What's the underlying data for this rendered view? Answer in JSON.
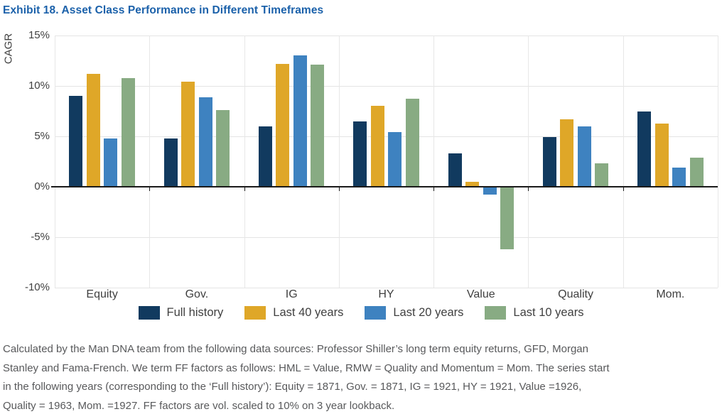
{
  "title": "Exhibit 18. Asset Class Performance in Different Timeframes",
  "chart_data": {
    "type": "bar",
    "title": "Exhibit 18. Asset Class Performance in Different Timeframes",
    "ylabel": "CAGR",
    "xlabel": "",
    "ylim": [
      -10,
      15
    ],
    "grid": true,
    "legend_position": "bottom",
    "yticks": [
      {
        "value": 15,
        "label": "15%"
      },
      {
        "value": 10,
        "label": "10%"
      },
      {
        "value": 5,
        "label": "5%"
      },
      {
        "value": 0,
        "label": "0%"
      },
      {
        "value": -5,
        "label": "-5%"
      },
      {
        "value": -10,
        "label": "-10%"
      }
    ],
    "categories": [
      "Equity",
      "Gov.",
      "IG",
      "HY",
      "Value",
      "Quality",
      "Mom."
    ],
    "series": [
      {
        "name": "Full history",
        "color": "#113a5f",
        "values": [
          9.0,
          4.8,
          6.0,
          6.5,
          3.3,
          4.9,
          7.5
        ]
      },
      {
        "name": "Last 40 years",
        "color": "#dfa728",
        "values": [
          11.2,
          10.4,
          12.2,
          8.0,
          0.5,
          6.7,
          6.3
        ]
      },
      {
        "name": "Last 20 years",
        "color": "#3e82c0",
        "values": [
          4.8,
          8.9,
          13.0,
          5.4,
          -0.8,
          6.0,
          1.9
        ]
      },
      {
        "name": "Last 10 years",
        "color": "#88ab83",
        "values": [
          10.8,
          7.6,
          12.1,
          8.7,
          -6.2,
          2.3,
          2.9
        ]
      }
    ]
  },
  "footnote": {
    "lines": [
      "Calculated by the Man DNA team from the following data sources: Professor Shiller’s long term equity returns, GFD, Morgan",
      "Stanley and Fama-French. We term FF factors as follows: HML = Value, RMW = Quality and Momentum = Mom. The series start",
      "in the following years (corresponding to the ‘Full history’): Equity = 1871, Gov. = 1871, IG = 1921, HY = 1921, Value =1926,",
      "Quality = 1963, Mom. =1927. FF factors are vol. scaled to 10% on 3 year lookback."
    ]
  }
}
